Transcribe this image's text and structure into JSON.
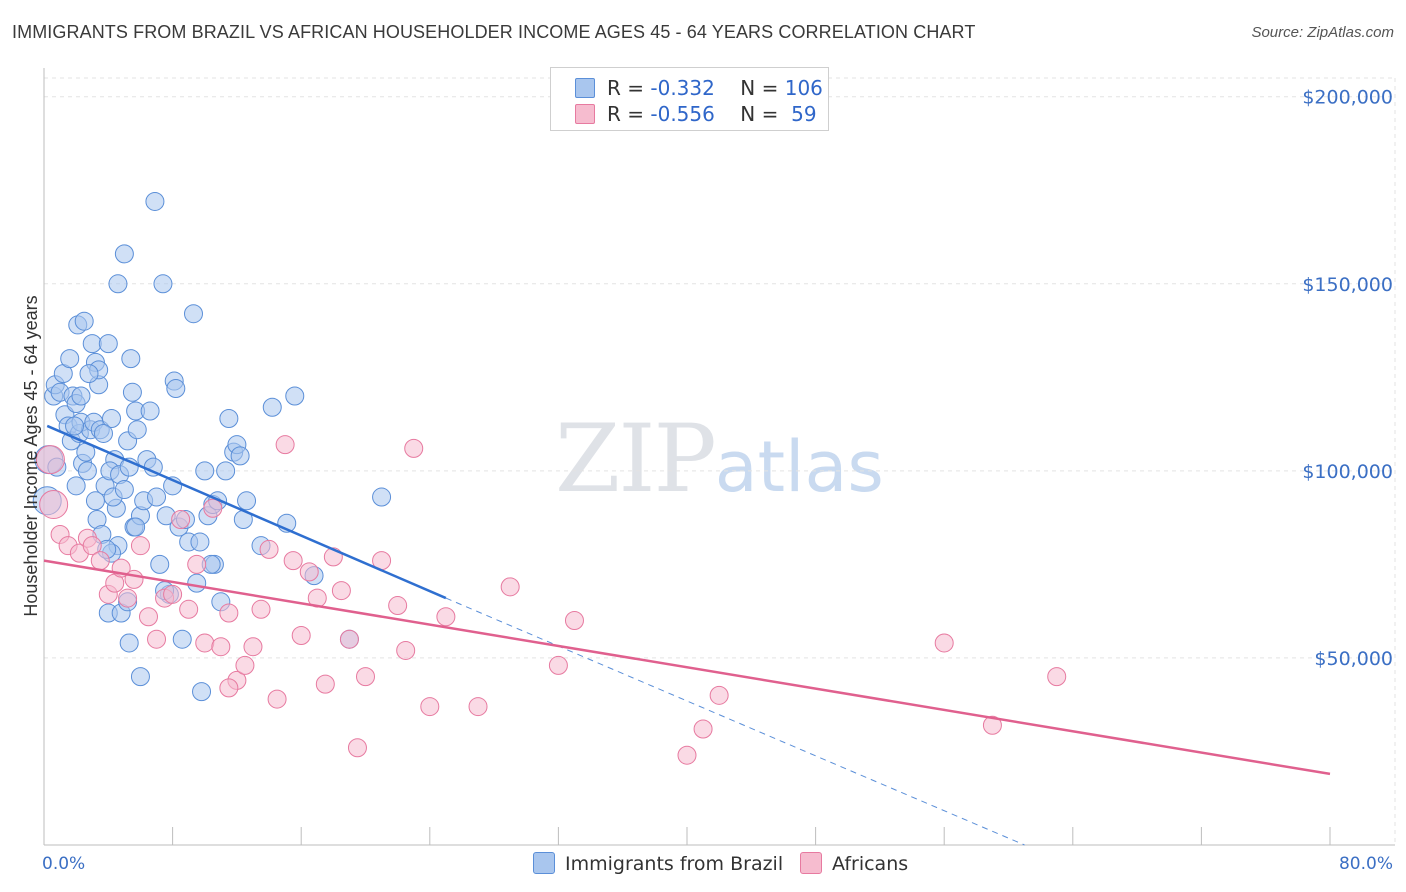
{
  "chart_data": {
    "type": "scatter",
    "title": "IMMIGRANTS FROM BRAZIL VS AFRICAN HOUSEHOLDER INCOME AGES 45 - 64 YEARS CORRELATION CHART",
    "source": "Source: ZipAtlas.com",
    "xlabel": "",
    "ylabel": "Householder Income Ages 45 - 64 years",
    "xlim": [
      0,
      80
    ],
    "ylim": [
      0,
      205000
    ],
    "x_tick_labels": [
      "0.0%",
      "80.0%"
    ],
    "y_ticks": [
      {
        "value": 50000,
        "label": "$50,000"
      },
      {
        "value": 100000,
        "label": "$100,000"
      },
      {
        "value": 150000,
        "label": "$150,000"
      },
      {
        "value": 200000,
        "label": "$200,000"
      }
    ],
    "grid": true,
    "legend": [
      {
        "r_label": "R = ",
        "r_value": "-0.332",
        "n_label": "N = ",
        "n_value": "106"
      },
      {
        "r_label": "R = ",
        "r_value": "-0.556",
        "n_label": "N = ",
        "n_value": " 59"
      }
    ],
    "watermark": {
      "zip": "ZIP",
      "atlas": "atlas"
    },
    "series": [
      {
        "name": "Immigrants from Brazil",
        "color": "#5b8fd8",
        "fill": "#a9c6ee",
        "trend": {
          "x": [
            0.2,
            25.0
          ],
          "y": [
            112000,
            66000
          ]
        },
        "trend_dashed": {
          "x": [
            25.0,
            61.0
          ],
          "y": [
            66000,
            0
          ]
        },
        "points": [
          [
            0.3,
            103000
          ],
          [
            0.2,
            92000
          ],
          [
            0.8,
            101000
          ],
          [
            0.6,
            120000
          ],
          [
            0.7,
            123000
          ],
          [
            1.2,
            126000
          ],
          [
            1.0,
            121000
          ],
          [
            1.3,
            115000
          ],
          [
            1.5,
            112000
          ],
          [
            1.6,
            130000
          ],
          [
            1.8,
            120000
          ],
          [
            1.7,
            108000
          ],
          [
            2.0,
            118000
          ],
          [
            2.2,
            110000
          ],
          [
            2.4,
            102000
          ],
          [
            2.0,
            96000
          ],
          [
            2.6,
            105000
          ],
          [
            2.3,
            113000
          ],
          [
            2.7,
            100000
          ],
          [
            2.9,
            111000
          ],
          [
            2.1,
            139000
          ],
          [
            2.5,
            140000
          ],
          [
            3.0,
            134000
          ],
          [
            3.1,
            113000
          ],
          [
            3.2,
            92000
          ],
          [
            3.4,
            123000
          ],
          [
            3.5,
            111000
          ],
          [
            3.3,
            87000
          ],
          [
            3.6,
            83000
          ],
          [
            3.8,
            96000
          ],
          [
            3.2,
            129000
          ],
          [
            3.4,
            127000
          ],
          [
            4.0,
            134000
          ],
          [
            4.2,
            114000
          ],
          [
            4.4,
            103000
          ],
          [
            4.1,
            100000
          ],
          [
            4.5,
            90000
          ],
          [
            4.6,
            80000
          ],
          [
            4.3,
            93000
          ],
          [
            4.7,
            99000
          ],
          [
            5.0,
            95000
          ],
          [
            5.2,
            108000
          ],
          [
            5.3,
            101000
          ],
          [
            5.4,
            130000
          ],
          [
            5.5,
            121000
          ],
          [
            5.7,
            116000
          ],
          [
            5.8,
            111000
          ],
          [
            5.6,
            85000
          ],
          [
            6.0,
            88000
          ],
          [
            6.2,
            92000
          ],
          [
            4.0,
            62000
          ],
          [
            4.2,
            78000
          ],
          [
            4.6,
            150000
          ],
          [
            5.0,
            158000
          ],
          [
            5.3,
            54000
          ],
          [
            5.7,
            85000
          ],
          [
            6.4,
            103000
          ],
          [
            6.6,
            116000
          ],
          [
            6.8,
            101000
          ],
          [
            7.0,
            93000
          ],
          [
            7.2,
            75000
          ],
          [
            7.4,
            150000
          ],
          [
            7.6,
            88000
          ],
          [
            7.8,
            67000
          ],
          [
            8.0,
            96000
          ],
          [
            8.1,
            124000
          ],
          [
            8.2,
            122000
          ],
          [
            8.4,
            85000
          ],
          [
            8.6,
            55000
          ],
          [
            8.8,
            87000
          ],
          [
            9.0,
            81000
          ],
          [
            9.3,
            142000
          ],
          [
            9.5,
            70000
          ],
          [
            9.7,
            81000
          ],
          [
            10.0,
            100000
          ],
          [
            10.2,
            88000
          ],
          [
            10.5,
            91000
          ],
          [
            10.6,
            75000
          ],
          [
            10.8,
            92000
          ],
          [
            11.0,
            65000
          ],
          [
            11.3,
            100000
          ],
          [
            11.5,
            114000
          ],
          [
            11.8,
            105000
          ],
          [
            12.0,
            107000
          ],
          [
            12.2,
            104000
          ],
          [
            12.4,
            87000
          ],
          [
            12.6,
            92000
          ],
          [
            13.5,
            80000
          ],
          [
            14.2,
            117000
          ],
          [
            15.1,
            86000
          ],
          [
            15.6,
            120000
          ],
          [
            16.8,
            72000
          ],
          [
            19.0,
            55000
          ],
          [
            21.0,
            93000
          ],
          [
            4.8,
            62000
          ],
          [
            5.2,
            65000
          ],
          [
            6.0,
            45000
          ],
          [
            7.5,
            68000
          ],
          [
            6.9,
            172000
          ],
          [
            3.9,
            79000
          ],
          [
            2.8,
            126000
          ],
          [
            3.7,
            110000
          ],
          [
            1.9,
            112000
          ],
          [
            2.3,
            120000
          ],
          [
            9.8,
            41000
          ],
          [
            10.4,
            75000
          ]
        ]
      },
      {
        "name": "Africans",
        "color": "#e77aa0",
        "fill": "#f6bccf",
        "trend": {
          "x": [
            0.0,
            80.0
          ],
          "y": [
            76000,
            19000
          ]
        },
        "points": [
          [
            0.4,
            103000
          ],
          [
            0.6,
            91000
          ],
          [
            1.0,
            83000
          ],
          [
            1.5,
            80000
          ],
          [
            2.2,
            78000
          ],
          [
            2.7,
            82000
          ],
          [
            3.0,
            80000
          ],
          [
            3.5,
            76000
          ],
          [
            4.0,
            67000
          ],
          [
            4.4,
            70000
          ],
          [
            4.8,
            74000
          ],
          [
            5.2,
            66000
          ],
          [
            5.6,
            71000
          ],
          [
            6.0,
            80000
          ],
          [
            6.5,
            61000
          ],
          [
            7.0,
            55000
          ],
          [
            7.5,
            66000
          ],
          [
            8.0,
            67000
          ],
          [
            8.5,
            87000
          ],
          [
            9.0,
            63000
          ],
          [
            9.5,
            75000
          ],
          [
            10.0,
            54000
          ],
          [
            10.5,
            90000
          ],
          [
            11.0,
            53000
          ],
          [
            11.5,
            62000
          ],
          [
            12.0,
            44000
          ],
          [
            12.5,
            48000
          ],
          [
            13.0,
            53000
          ],
          [
            13.5,
            63000
          ],
          [
            14.0,
            79000
          ],
          [
            14.5,
            39000
          ],
          [
            15.0,
            107000
          ],
          [
            15.5,
            76000
          ],
          [
            16.0,
            56000
          ],
          [
            16.5,
            73000
          ],
          [
            17.0,
            66000
          ],
          [
            17.5,
            43000
          ],
          [
            18.0,
            77000
          ],
          [
            18.5,
            68000
          ],
          [
            19.0,
            55000
          ],
          [
            19.5,
            26000
          ],
          [
            20.0,
            45000
          ],
          [
            21.0,
            76000
          ],
          [
            22.0,
            64000
          ],
          [
            22.5,
            52000
          ],
          [
            23.0,
            106000
          ],
          [
            24.0,
            37000
          ],
          [
            25.0,
            61000
          ],
          [
            27.0,
            37000
          ],
          [
            29.0,
            69000
          ],
          [
            32.0,
            48000
          ],
          [
            33.0,
            60000
          ],
          [
            40.0,
            24000
          ],
          [
            41.0,
            31000
          ],
          [
            42.0,
            40000
          ],
          [
            56.0,
            54000
          ],
          [
            59.0,
            32000
          ],
          [
            63.0,
            45000
          ],
          [
            11.5,
            42000
          ]
        ]
      }
    ]
  },
  "bottom_legend": [
    {
      "label": "Immigrants from Brazil",
      "color": "#a9c6ee"
    },
    {
      "label": "Africans",
      "color": "#f6bccf"
    }
  ]
}
